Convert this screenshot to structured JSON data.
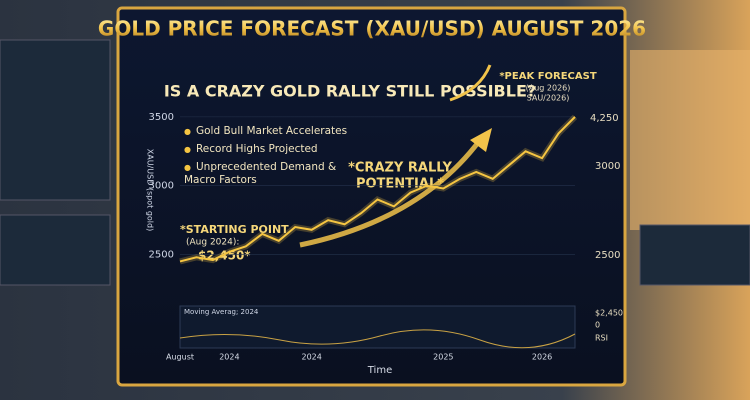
{
  "chart_data": {
    "type": "line",
    "title": "GOLD PRICE FORECAST (XAU/USD) AUGUST 2026",
    "subtitle": "IS A CRAZY GOLD RALLY STILL POSSIBLE?",
    "y_label": "XAU/USD (spot gold)",
    "x_label": "Time",
    "bullets": [
      "Gold Bull Market Accelerates",
      "Record Highs Projected",
      "Unprecedented Demand & Macro Factors"
    ],
    "annotations": {
      "start": "*STARTING POINT",
      "start_date": "(Aug 2024):",
      "start_price": "$2,450*",
      "rally": "*CRAZY RALLY",
      "rally2": "POTENTIAL*",
      "peak": "*PEAK FORECAST",
      "peak_date": "(Aug 2026)",
      "peak_sub": "SAU/2026)"
    },
    "right_labels": [
      "4,250",
      "3000",
      "2500",
      "$2,450",
      "0",
      "RSI"
    ],
    "panel_label": "Moving Averag; 2024",
    "categories": [
      "August",
      null,
      null,
      "2024",
      null,
      null,
      null,
      null,
      "2024",
      null,
      null,
      null,
      null,
      null,
      null,
      null,
      "2025",
      null,
      null,
      null,
      null,
      null,
      "2026",
      null,
      null
    ],
    "values": [
      2450,
      2480,
      2460,
      2520,
      2560,
      2650,
      2600,
      2700,
      2680,
      2750,
      2720,
      2800,
      2900,
      2850,
      2950,
      3000,
      2980,
      3050,
      3100,
      3050,
      3150,
      3250,
      3200,
      3380,
      3500
    ],
    "color": "#f5c542",
    "ylim": [
      2170,
      3550
    ],
    "yticks": [
      2500,
      3000,
      3500
    ]
  }
}
